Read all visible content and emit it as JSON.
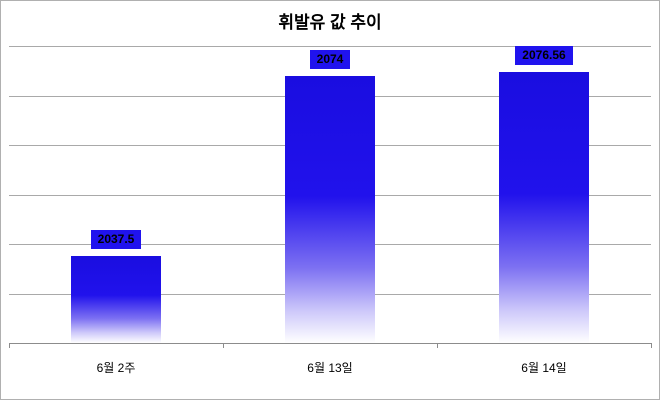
{
  "chart_data": {
    "type": "bar",
    "title": "휘발유 값 추이",
    "categories": [
      "6월 2주",
      "6월 13일",
      "6월 14일"
    ],
    "values": [
      2037.5,
      2074,
      2076.56
    ],
    "value_labels": [
      "2037.5",
      "2074",
      "2076.56"
    ],
    "xlabel": "",
    "ylabel": "",
    "ylim": [
      2020,
      2080
    ],
    "gridline_step": 10,
    "grid": true,
    "legend": false,
    "y_tick_labels_shown": false,
    "colors": {
      "bar_top": "#1a0de0",
      "bar_bottom": "#ffffff",
      "value_label_bg": "#2013ee",
      "value_label_text": "#000000",
      "gridline": "#a9a9a9",
      "axis_line": "#8c8c8c",
      "title_text": "#000000"
    }
  }
}
